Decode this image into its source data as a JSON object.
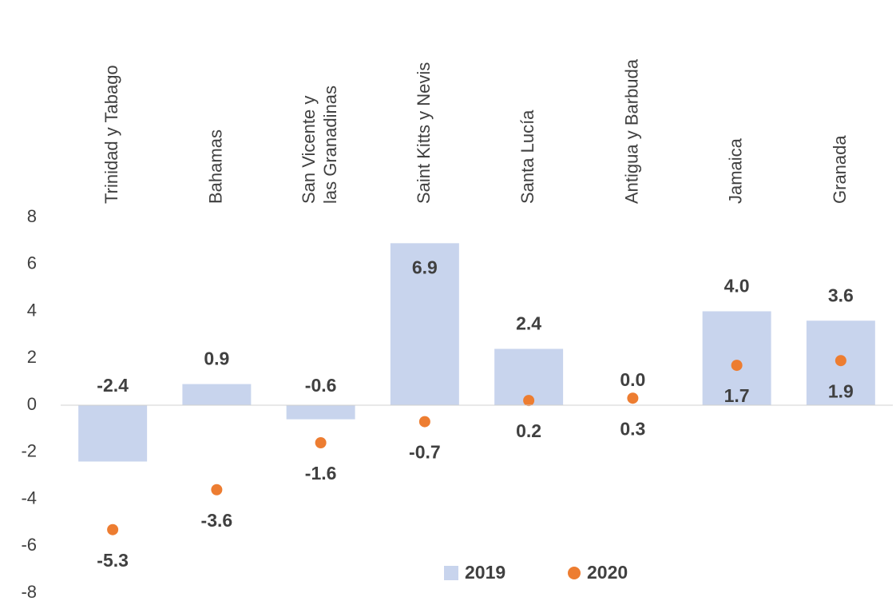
{
  "chart_data": {
    "type": "bar_dot",
    "categories": [
      "Trinidad y Tabago",
      "Bahamas",
      "San Vicente y\nlas Granadinas",
      "Saint Kitts y Nevis",
      "Santa Lucía",
      "Antigua y Barbuda",
      "Jamaica",
      "Granada"
    ],
    "series": [
      {
        "name": "2019",
        "color": "#c8d4ed",
        "values": [
          -2.4,
          0.9,
          -0.6,
          6.9,
          2.4,
          0,
          4,
          3.6
        ],
        "value_labels": [
          "-2.4",
          "0.9",
          "-0.6",
          "6.9",
          "2.4",
          "0.0",
          "4.0",
          "3.6"
        ]
      },
      {
        "name": "2020",
        "color": "#ed7d31",
        "values": [
          -5.3,
          -3.6,
          -1.6,
          -0.7,
          0.2,
          0.3,
          1.7,
          1.9
        ],
        "value_labels": [
          "-5.3",
          "-3.6",
          "-1.6",
          "-0.7",
          "0.2",
          "0.3",
          "1.7",
          "1.9"
        ]
      }
    ],
    "ylim": [
      -8,
      8
    ],
    "yticks": [
      -8,
      -6,
      -4,
      -2,
      0,
      2,
      4,
      6,
      8
    ],
    "grid": false
  }
}
